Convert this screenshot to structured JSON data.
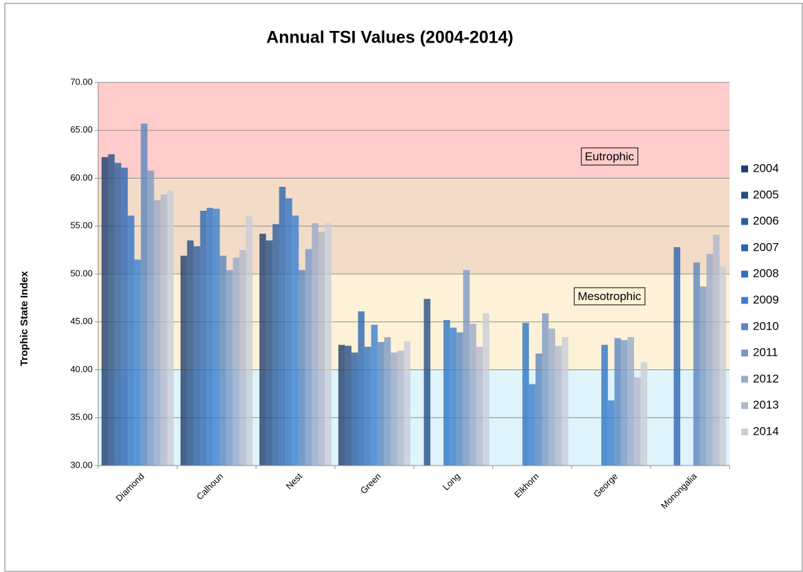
{
  "chart_data": {
    "type": "bar",
    "title": "Annual TSI Values (2004-2014)",
    "y_label": "Trophic State Index",
    "categories": [
      "Diamond",
      "Calhoun",
      "Nest",
      "Green",
      "Long",
      "Elkhorn",
      "George",
      "Monongalia"
    ],
    "series": [
      {
        "name": "2004",
        "color": "#1f3f6e",
        "values": [
          62.2,
          51.9,
          54.2,
          42.6,
          null,
          null,
          null,
          null
        ]
      },
      {
        "name": "2005",
        "color": "#244f86",
        "values": [
          62.5,
          53.5,
          53.5,
          42.5,
          47.4,
          null,
          null,
          null
        ]
      },
      {
        "name": "2006",
        "color": "#2a5ea0",
        "values": [
          61.6,
          52.9,
          55.2,
          41.8,
          null,
          null,
          null,
          null
        ]
      },
      {
        "name": "2007",
        "color": "#2c66b0",
        "values": [
          61.1,
          56.6,
          59.1,
          46.1,
          null,
          null,
          null,
          52.8
        ]
      },
      {
        "name": "2008",
        "color": "#2e74c4",
        "values": [
          56.1,
          56.9,
          57.9,
          42.4,
          45.2,
          44.9,
          42.6,
          null
        ]
      },
      {
        "name": "2009",
        "color": "#3a80d0",
        "values": [
          51.5,
          56.8,
          56.1,
          44.7,
          44.4,
          38.5,
          36.8,
          null
        ]
      },
      {
        "name": "2010",
        "color": "#5b86bf",
        "values": [
          65.7,
          51.9,
          50.4,
          42.9,
          43.9,
          41.7,
          43.3,
          51.2
        ]
      },
      {
        "name": "2011",
        "color": "#7a98c4",
        "values": [
          60.8,
          50.4,
          52.6,
          43.4,
          50.4,
          45.9,
          43.1,
          48.7
        ]
      },
      {
        "name": "2012",
        "color": "#98aac8",
        "values": [
          57.7,
          51.7,
          55.3,
          41.8,
          44.8,
          44.3,
          43.4,
          52.1
        ]
      },
      {
        "name": "2013",
        "color": "#b0b8cc",
        "values": [
          58.3,
          52.5,
          54.4,
          42.0,
          42.4,
          42.5,
          39.2,
          54.1
        ]
      },
      {
        "name": "2014",
        "color": "#c8cdd8",
        "values": [
          58.7,
          56.0,
          55.3,
          43.0,
          45.9,
          43.4,
          40.8,
          50.8
        ]
      }
    ],
    "ylim": [
      30,
      70
    ],
    "yticks": [
      {
        "value": 30,
        "label": "30.00"
      },
      {
        "value": 35,
        "label": "35.00"
      },
      {
        "value": 40,
        "label": "40.00"
      },
      {
        "value": 45,
        "label": "45.00"
      },
      {
        "value": 50,
        "label": "50.00"
      },
      {
        "value": 55,
        "label": "55.00"
      },
      {
        "value": 60,
        "label": "60.00"
      },
      {
        "value": 65,
        "label": "65.00"
      },
      {
        "value": 70,
        "label": "70.00"
      }
    ],
    "grid": true,
    "legend": "right",
    "bands": [
      {
        "from": 60,
        "to": 70,
        "color": "#ffcccc",
        "label": "Eutrophic"
      },
      {
        "from": 50,
        "to": 60,
        "color": "#f2dcc8"
      },
      {
        "from": 40,
        "to": 50,
        "color": "#fdf2d8",
        "label": "Mesotrophic"
      },
      {
        "from": 30,
        "to": 40,
        "color": "#dff3fb"
      }
    ]
  }
}
